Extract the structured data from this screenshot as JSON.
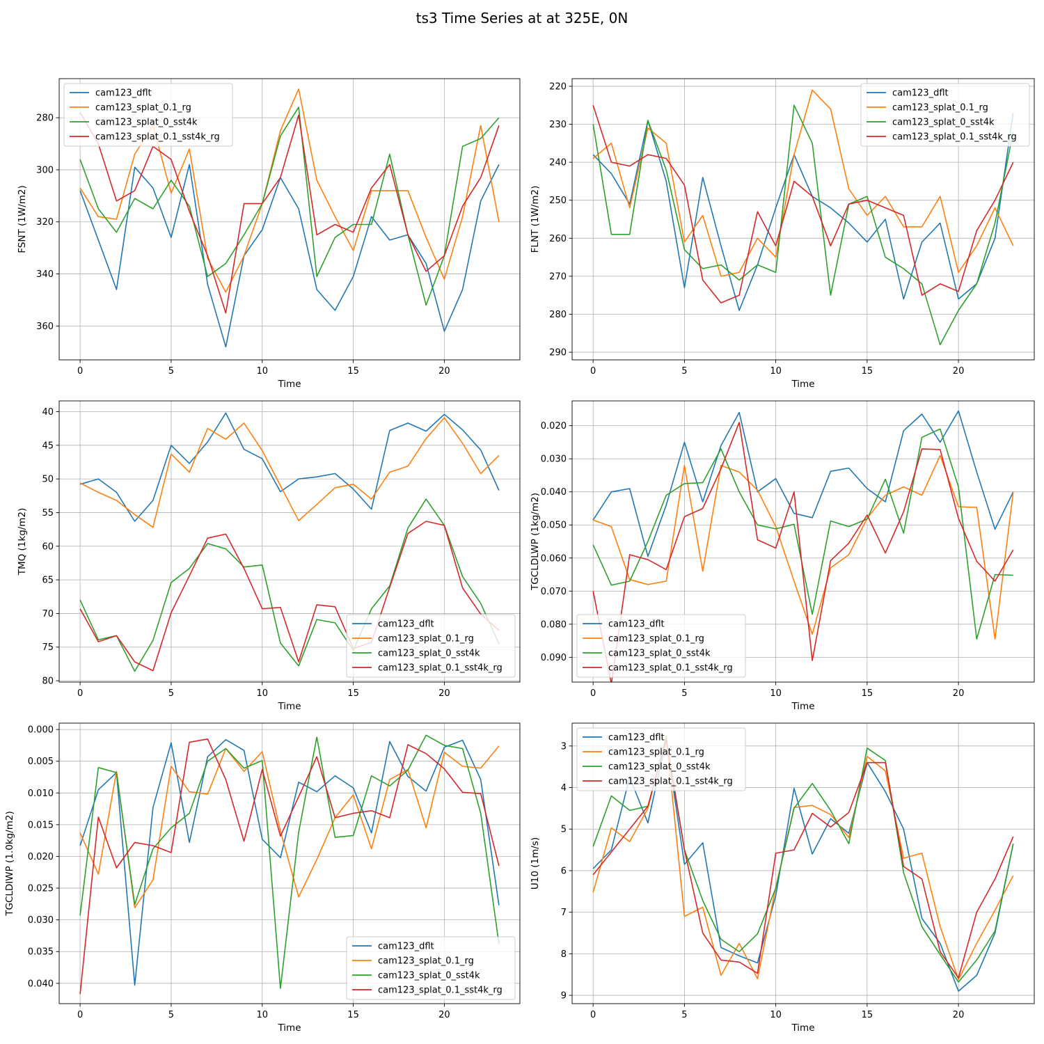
{
  "figure": {
    "title": "ts3 Time Series at at 325E, 0N"
  },
  "colors": {
    "cam123_dflt": "#1f77b4",
    "cam123_splat_0.1_rg": "#ff7f0e",
    "cam123_splat_0_sst4k": "#2ca02c",
    "cam123_splat_0.1_sst4k_rg": "#d62728"
  },
  "chart_data": [
    {
      "type": "line",
      "xlabel": "Time",
      "ylabel": "FSNT (1W/m2)",
      "xlim": [
        -1.15,
        24.15
      ],
      "ylim": [
        373,
        265
      ],
      "y_inverted": true,
      "xticks": [
        0,
        5,
        10,
        15,
        20
      ],
      "yticks": [
        280,
        300,
        320,
        340,
        360
      ],
      "grid": true,
      "legend": "upper left",
      "x": [
        0,
        1,
        2,
        3,
        4,
        5,
        6,
        7,
        8,
        9,
        10,
        11,
        12,
        13,
        14,
        15,
        16,
        17,
        18,
        19,
        20,
        21,
        22,
        23
      ],
      "series": [
        {
          "name": "cam123_dflt",
          "values": [
            308,
            327,
            346,
            299,
            307,
            326,
            298,
            344,
            368,
            333,
            323,
            303,
            315,
            346,
            354,
            341,
            318,
            327,
            325,
            336,
            362,
            346,
            312,
            298
          ]
        },
        {
          "name": "cam123_splat_0.1_rg",
          "values": [
            307,
            318,
            319,
            294,
            283,
            309,
            292,
            334,
            347,
            333,
            313,
            285,
            269,
            304,
            318,
            331,
            308,
            308,
            308,
            326,
            342,
            318,
            283,
            320
          ]
        },
        {
          "name": "cam123_splat_0_sst4k",
          "values": [
            296,
            315,
            324,
            311,
            315,
            304,
            314,
            341,
            336,
            325,
            313,
            287,
            276,
            341,
            326,
            321,
            321,
            294,
            325,
            352,
            333,
            291,
            288,
            280
          ]
        },
        {
          "name": "cam123_splat_0.1_sst4k_rg",
          "values": [
            278,
            290,
            312,
            308,
            291,
            296,
            316,
            333,
            355,
            313,
            313,
            303,
            279,
            325,
            321,
            324,
            307,
            298,
            325,
            339,
            333,
            314,
            303,
            283
          ]
        }
      ]
    },
    {
      "type": "line",
      "xlabel": "Time",
      "ylabel": "FLNT (1W/m2)",
      "xlim": [
        -1.15,
        24.15
      ],
      "ylim": [
        292,
        218
      ],
      "y_inverted": true,
      "xticks": [
        0,
        5,
        10,
        15,
        20
      ],
      "yticks": [
        220,
        230,
        240,
        250,
        260,
        270,
        280,
        290
      ],
      "grid": true,
      "legend": "upper right",
      "x": [
        0,
        1,
        2,
        3,
        4,
        5,
        6,
        7,
        8,
        9,
        10,
        11,
        12,
        13,
        14,
        15,
        16,
        17,
        18,
        19,
        20,
        21,
        22,
        23
      ],
      "series": [
        {
          "name": "cam123_dflt",
          "values": [
            238,
            243,
            251,
            229,
            245,
            273,
            244,
            262,
            279,
            267,
            252,
            238,
            249,
            252,
            256,
            261,
            255,
            276,
            261,
            256,
            276,
            272,
            260,
            227
          ]
        },
        {
          "name": "cam123_splat_0.1_rg",
          "values": [
            239,
            235,
            252,
            231,
            235,
            261,
            254,
            270,
            269,
            260,
            265,
            238,
            221,
            226,
            247,
            254,
            249,
            257,
            257,
            249,
            269,
            262,
            252,
            262
          ]
        },
        {
          "name": "cam123_splat_0_sst4k",
          "values": [
            230,
            259,
            259,
            229,
            242,
            263,
            268,
            267,
            271,
            267,
            269,
            225,
            235,
            275,
            251,
            249,
            265,
            268,
            272,
            288,
            279,
            272,
            256,
            232
          ]
        },
        {
          "name": "cam123_splat_0.1_sst4k_rg",
          "values": [
            225,
            240,
            241,
            238,
            239,
            246,
            271,
            277,
            275,
            253,
            262,
            245,
            249,
            262,
            251,
            250,
            252,
            254,
            275,
            272,
            274,
            258,
            250,
            240
          ]
        }
      ]
    },
    {
      "type": "line",
      "xlabel": "Time",
      "ylabel": "TMQ (1kg/m2)",
      "xlim": [
        -1.15,
        24.15
      ],
      "ylim": [
        80.2,
        38.4
      ],
      "y_inverted": true,
      "xticks": [
        0,
        5,
        10,
        15,
        20
      ],
      "yticks": [
        40,
        45,
        50,
        55,
        60,
        65,
        70,
        75,
        80
      ],
      "grid": true,
      "legend": "lower right",
      "x": [
        0,
        1,
        2,
        3,
        4,
        5,
        6,
        7,
        8,
        9,
        10,
        11,
        12,
        13,
        14,
        15,
        16,
        17,
        18,
        19,
        20,
        21,
        22,
        23
      ],
      "series": [
        {
          "name": "cam123_dflt",
          "values": [
            50.8,
            50.0,
            52.0,
            56.3,
            53.2,
            45.0,
            47.7,
            44.5,
            40.2,
            45.6,
            47.0,
            51.9,
            50.0,
            49.7,
            49.2,
            51.5,
            54.5,
            42.8,
            41.7,
            42.9,
            40.4,
            42.7,
            45.7,
            51.7
          ]
        },
        {
          "name": "cam123_splat_0.1_rg",
          "values": [
            50.6,
            52.0,
            53.2,
            55.3,
            57.2,
            46.3,
            49.0,
            42.5,
            44.1,
            41.7,
            45.8,
            51.0,
            56.2,
            53.8,
            51.3,
            50.8,
            53.0,
            49.0,
            48.1,
            44.0,
            40.9,
            44.7,
            49.2,
            46.5
          ]
        },
        {
          "name": "cam123_splat_0_sst4k",
          "values": [
            68.0,
            73.9,
            73.3,
            78.6,
            74.0,
            65.4,
            63.3,
            59.6,
            60.4,
            63.1,
            62.8,
            74.4,
            77.8,
            70.9,
            71.4,
            75.5,
            69.3,
            65.9,
            57.3,
            53.0,
            56.9,
            64.5,
            68.5,
            74.5
          ]
        },
        {
          "name": "cam123_splat_0.1_sst4k_rg",
          "values": [
            69.3,
            74.2,
            73.3,
            77.2,
            78.5,
            69.9,
            64.4,
            58.8,
            58.2,
            63.3,
            69.3,
            69.1,
            77.2,
            68.7,
            69.0,
            75.2,
            74.3,
            66.1,
            58.1,
            56.3,
            56.9,
            66.2,
            70.1,
            72.5
          ]
        }
      ]
    },
    {
      "type": "line",
      "xlabel": "Time",
      "ylabel": "TGCLDLWP (1kg/m2)",
      "xlim": [
        -1.15,
        24.15
      ],
      "ylim": [
        0.0975,
        0.0125
      ],
      "y_inverted": true,
      "xticks": [
        0,
        5,
        10,
        15,
        20
      ],
      "yticks": [
        0.02,
        0.03,
        0.04,
        0.05,
        0.06,
        0.07,
        0.08,
        0.09
      ],
      "grid": true,
      "legend": "lower left",
      "x": [
        0,
        1,
        2,
        3,
        4,
        5,
        6,
        7,
        8,
        9,
        10,
        11,
        12,
        13,
        14,
        15,
        16,
        17,
        18,
        19,
        20,
        21,
        22,
        23
      ],
      "series": [
        {
          "name": "cam123_dflt",
          "values": [
            0.0485,
            0.04,
            0.039,
            0.0595,
            0.044,
            0.025,
            0.043,
            0.026,
            0.016,
            0.04,
            0.036,
            0.0465,
            0.0478,
            0.0338,
            0.0328,
            0.039,
            0.043,
            0.0215,
            0.0165,
            0.025,
            0.0155,
            0.034,
            0.0513,
            0.04
          ]
        },
        {
          "name": "cam123_splat_0.1_rg",
          "values": [
            0.0485,
            0.0505,
            0.0665,
            0.068,
            0.067,
            0.032,
            0.064,
            0.032,
            0.034,
            0.0395,
            0.0505,
            0.067,
            0.083,
            0.063,
            0.059,
            0.048,
            0.041,
            0.0385,
            0.041,
            0.029,
            0.0445,
            0.0447,
            0.0845,
            0.04
          ]
        },
        {
          "name": "cam123_splat_0_sst4k",
          "values": [
            0.056,
            0.0682,
            0.067,
            0.055,
            0.041,
            0.0375,
            0.0372,
            0.027,
            0.04,
            0.05,
            0.0512,
            0.0498,
            0.077,
            0.0488,
            0.0505,
            0.0482,
            0.0362,
            0.0525,
            0.0235,
            0.021,
            0.0385,
            0.0845,
            0.065,
            0.0652
          ]
        },
        {
          "name": "cam123_splat_0.1_sst4k_rg",
          "values": [
            0.07,
            0.098,
            0.059,
            0.0605,
            0.0635,
            0.0475,
            0.045,
            0.033,
            0.019,
            0.0545,
            0.057,
            0.04,
            0.091,
            0.0608,
            0.0555,
            0.047,
            0.0585,
            0.046,
            0.027,
            0.0272,
            0.048,
            0.061,
            0.067,
            0.0575
          ]
        }
      ]
    },
    {
      "type": "line",
      "xlabel": "Time",
      "ylabel": "TGCLDIWP (1.0kg/m2)",
      "xlim": [
        -1.15,
        24.15
      ],
      "ylim": [
        0.0432,
        -0.001
      ],
      "y_inverted": true,
      "xticks": [
        0,
        5,
        10,
        15,
        20
      ],
      "yticks": [
        0.0,
        0.005,
        0.01,
        0.015,
        0.02,
        0.025,
        0.03,
        0.035,
        0.04
      ],
      "grid": true,
      "legend": "lower right",
      "x": [
        0,
        1,
        2,
        3,
        4,
        5,
        6,
        7,
        8,
        9,
        10,
        11,
        12,
        13,
        14,
        15,
        16,
        17,
        18,
        19,
        20,
        21,
        22,
        23
      ],
      "series": [
        {
          "name": "cam123_dflt",
          "values": [
            0.0183,
            0.0095,
            0.0068,
            0.0403,
            0.0123,
            0.0021,
            0.0178,
            0.0043,
            0.0016,
            0.0033,
            0.0173,
            0.0202,
            0.0083,
            0.0098,
            0.0073,
            0.0092,
            0.0163,
            0.0019,
            0.0074,
            0.0097,
            0.0028,
            0.0017,
            0.0079,
            0.0277
          ]
        },
        {
          "name": "cam123_splat_0.1_rg",
          "values": [
            0.0163,
            0.0228,
            0.0066,
            0.0281,
            0.0237,
            0.0058,
            0.0098,
            0.0102,
            0.003,
            0.0066,
            0.0035,
            0.016,
            0.0264,
            0.0205,
            0.0139,
            0.0103,
            0.0188,
            0.0079,
            0.0063,
            0.0155,
            0.0036,
            0.0058,
            0.0061,
            0.0026
          ]
        },
        {
          "name": "cam123_splat_0_sst4k",
          "values": [
            0.0293,
            0.006,
            0.0068,
            0.0276,
            0.0188,
            0.0155,
            0.0132,
            0.005,
            0.003,
            0.0061,
            0.0049,
            0.0408,
            0.0162,
            0.0012,
            0.017,
            0.0167,
            0.0073,
            0.0089,
            0.0064,
            0.0009,
            0.0025,
            0.003,
            0.0132,
            0.0338
          ]
        },
        {
          "name": "cam123_splat_0.1_sst4k_rg",
          "values": [
            0.0417,
            0.0138,
            0.0218,
            0.0178,
            0.0183,
            0.0194,
            0.002,
            0.0015,
            0.0079,
            0.0176,
            0.0063,
            0.0168,
            0.0106,
            0.0043,
            0.0139,
            0.0132,
            0.0128,
            0.0139,
            0.0024,
            0.0038,
            0.0062,
            0.0099,
            0.0101,
            0.0215
          ]
        }
      ]
    },
    {
      "type": "line",
      "xlabel": "Time",
      "ylabel": "U10 (1m/s)",
      "xlim": [
        -1.15,
        24.15
      ],
      "ylim": [
        9.2,
        2.45
      ],
      "y_inverted": true,
      "xticks": [
        0,
        5,
        10,
        15,
        20
      ],
      "yticks": [
        3,
        4,
        5,
        6,
        7,
        8,
        9
      ],
      "grid": true,
      "legend": "upper left",
      "x": [
        0,
        1,
        2,
        3,
        4,
        5,
        6,
        7,
        8,
        9,
        10,
        11,
        12,
        13,
        14,
        15,
        16,
        17,
        18,
        19,
        20,
        21,
        22,
        23
      ],
      "series": [
        {
          "name": "cam123_dflt",
          "values": [
            5.95,
            5.5,
            3.75,
            4.85,
            2.85,
            5.85,
            5.33,
            7.85,
            8.05,
            8.22,
            6.6,
            4.02,
            5.6,
            4.75,
            5.1,
            3.4,
            4.1,
            5.0,
            7.15,
            7.75,
            8.9,
            8.52,
            7.5,
            5.35
          ]
        },
        {
          "name": "cam123_splat_0.1_rg",
          "values": [
            6.52,
            4.97,
            5.3,
            4.5,
            2.75,
            7.1,
            6.88,
            8.52,
            7.75,
            8.6,
            6.4,
            4.48,
            4.43,
            4.65,
            5.2,
            3.25,
            3.6,
            5.7,
            5.58,
            7.35,
            8.62,
            7.75,
            6.95,
            6.12
          ]
        },
        {
          "name": "cam123_splat_0_sst4k",
          "values": [
            5.42,
            4.2,
            4.55,
            4.45,
            2.8,
            5.5,
            6.72,
            7.65,
            7.95,
            7.52,
            6.42,
            4.5,
            3.9,
            4.55,
            5.35,
            3.05,
            3.35,
            6.05,
            7.35,
            8.02,
            8.68,
            8.15,
            7.45,
            5.35
          ]
        },
        {
          "name": "cam123_splat_0.1_sst4k_rg",
          "values": [
            6.1,
            5.55,
            5.0,
            4.45,
            2.85,
            5.5,
            7.5,
            8.15,
            8.2,
            8.47,
            5.58,
            5.5,
            4.62,
            4.95,
            4.6,
            3.4,
            3.4,
            5.9,
            6.2,
            7.95,
            8.58,
            7.0,
            6.2,
            5.18
          ]
        }
      ]
    }
  ]
}
